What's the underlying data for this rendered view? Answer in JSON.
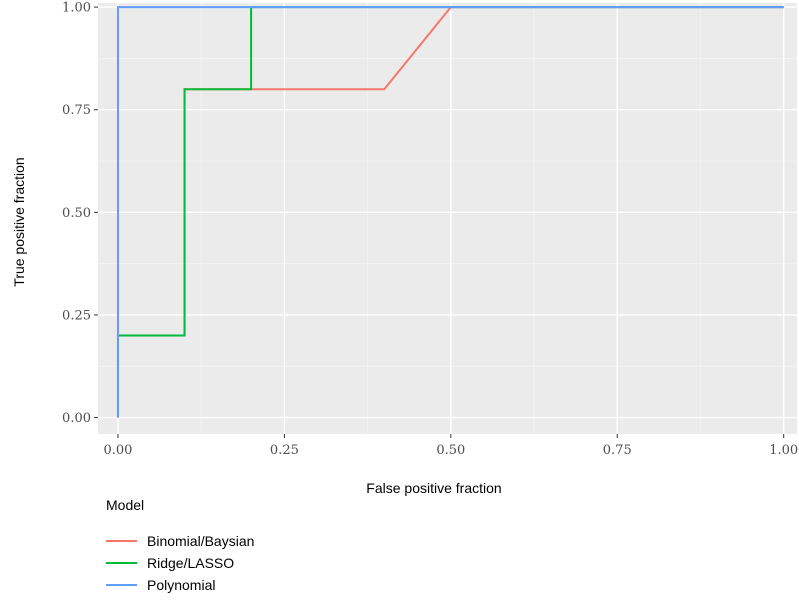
{
  "chart_data": {
    "type": "line",
    "title": "",
    "xlabel": "False positive fraction",
    "ylabel": "True positive fraction",
    "xlim": [
      -0.03,
      1.02
    ],
    "ylim": [
      -0.04,
      1.01
    ],
    "x_ticks": [
      0,
      0.25,
      0.5,
      0.75,
      1
    ],
    "x_tick_labels": [
      "0.00",
      "0.25",
      "0.50",
      "0.75",
      "1.00"
    ],
    "y_ticks": [
      0,
      0.25,
      0.5,
      0.75,
      1
    ],
    "y_tick_labels": [
      "0.00",
      "0.25",
      "0.50",
      "0.75",
      "1.00"
    ],
    "grid": true,
    "legend_title": "Model",
    "legend_position": "bottom",
    "series": [
      {
        "name": "Binomial/Baysian",
        "color": "#F8766D",
        "x": [
          0,
          0,
          0.1,
          0.1,
          0.2,
          0.2,
          0.4,
          0.5,
          1.0
        ],
        "y": [
          0,
          0.2,
          0.2,
          0.8,
          0.8,
          0.8,
          0.8,
          1.0,
          1.0
        ]
      },
      {
        "name": "Ridge/LASSO",
        "color": "#00BA38",
        "x": [
          0,
          0,
          0.1,
          0.1,
          0.2,
          0.2,
          1.0
        ],
        "y": [
          0,
          0.2,
          0.2,
          0.8,
          0.8,
          1.0,
          1.0
        ]
      },
      {
        "name": "Polynomial",
        "color": "#619CFF",
        "x": [
          0,
          0,
          1.0
        ],
        "y": [
          0,
          1.0,
          1.0
        ]
      }
    ]
  }
}
